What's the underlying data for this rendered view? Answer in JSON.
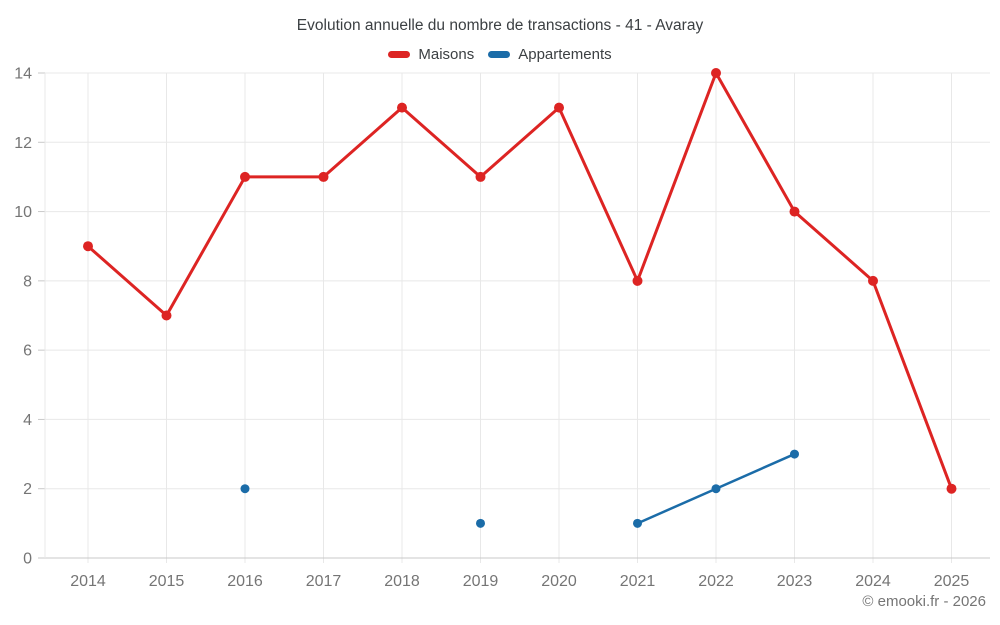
{
  "chart_data": {
    "type": "line",
    "title": "Evolution annuelle du nombre de transactions - 41 - Avaray",
    "categories": [
      "2014",
      "2015",
      "2016",
      "2017",
      "2018",
      "2019",
      "2020",
      "2021",
      "2022",
      "2023",
      "2024",
      "2025"
    ],
    "series": [
      {
        "name": "Maisons",
        "color": "#dd2423",
        "values": [
          9,
          7,
          11,
          11,
          13,
          11,
          13,
          8,
          14,
          10,
          8,
          2
        ]
      },
      {
        "name": "Appartements",
        "color": "#1b6ca8",
        "values": [
          null,
          null,
          2,
          null,
          null,
          1,
          null,
          1,
          2,
          3,
          null,
          null
        ]
      }
    ],
    "xlabel": "",
    "ylabel": "",
    "ylim": [
      0,
      14
    ],
    "yticks": [
      0,
      2,
      4,
      6,
      8,
      10,
      12,
      14
    ],
    "grid": true,
    "legend_position": "top"
  },
  "footer": {
    "copyright": "© emooki.fr - 2026"
  },
  "colors": {
    "background": "#ffffff",
    "grid": "#e8e8e8",
    "axis": "#c9c9c9",
    "tick_label": "#757575",
    "title_text": "#3c4043"
  }
}
